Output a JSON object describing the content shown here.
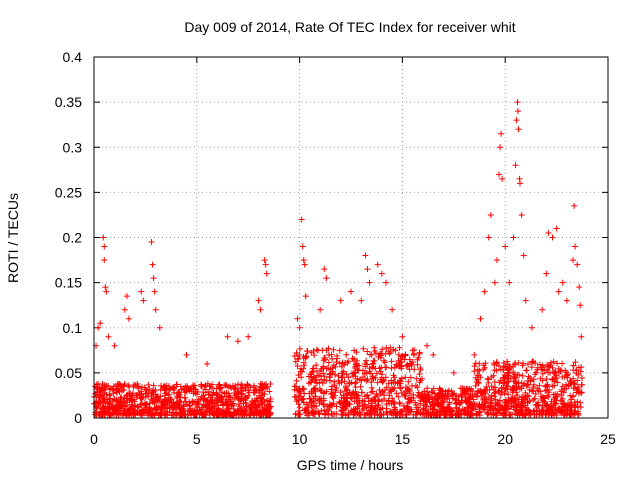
{
  "chart_data": {
    "type": "scatter",
    "title": "Day 009 of 2014, Rate Of TEC Index for receiver whit",
    "xlabel": "GPS time / hours",
    "ylabel": "ROTI / TECUs",
    "xlim": [
      0,
      25
    ],
    "ylim": [
      0,
      0.4
    ],
    "xticks": [
      0,
      5,
      10,
      15,
      20,
      25
    ],
    "yticks": [
      0,
      0.05,
      0.1,
      0.15,
      0.2,
      0.25,
      0.3,
      0.35,
      0.4
    ],
    "xtick_labels": [
      "0",
      "5",
      "10",
      "15",
      "20",
      "25"
    ],
    "ytick_labels": [
      "0",
      "0.05",
      "0.1",
      "0.15",
      "0.2",
      "0.25",
      "0.3",
      "0.35",
      "0.4"
    ],
    "grid": true,
    "marker": "+",
    "color": "#ff0000",
    "series": [
      {
        "name": "ROTI",
        "points": [
          [
            0.1,
            0.08
          ],
          [
            0.2,
            0.1
          ],
          [
            0.3,
            0.105
          ],
          [
            0.45,
            0.2
          ],
          [
            0.5,
            0.19
          ],
          [
            0.5,
            0.175
          ],
          [
            0.55,
            0.145
          ],
          [
            0.6,
            0.14
          ],
          [
            0.7,
            0.09
          ],
          [
            1.0,
            0.08
          ],
          [
            1.5,
            0.12
          ],
          [
            1.6,
            0.135
          ],
          [
            1.7,
            0.11
          ],
          [
            2.3,
            0.14
          ],
          [
            2.4,
            0.13
          ],
          [
            2.8,
            0.195
          ],
          [
            2.85,
            0.17
          ],
          [
            2.9,
            0.155
          ],
          [
            2.95,
            0.14
          ],
          [
            3.0,
            0.12
          ],
          [
            3.2,
            0.1
          ],
          [
            4.5,
            0.07
          ],
          [
            5.5,
            0.06
          ],
          [
            6.5,
            0.09
          ],
          [
            7.0,
            0.085
          ],
          [
            7.5,
            0.09
          ],
          [
            8.0,
            0.13
          ],
          [
            8.1,
            0.12
          ],
          [
            8.3,
            0.175
          ],
          [
            8.35,
            0.17
          ],
          [
            8.4,
            0.16
          ],
          [
            9.9,
            0.11
          ],
          [
            10.0,
            0.1
          ],
          [
            10.1,
            0.22
          ],
          [
            10.15,
            0.19
          ],
          [
            10.2,
            0.175
          ],
          [
            10.25,
            0.17
          ],
          [
            10.3,
            0.135
          ],
          [
            11.0,
            0.12
          ],
          [
            11.2,
            0.165
          ],
          [
            11.3,
            0.155
          ],
          [
            12.0,
            0.13
          ],
          [
            12.5,
            0.14
          ],
          [
            13.0,
            0.13
          ],
          [
            13.2,
            0.18
          ],
          [
            13.3,
            0.165
          ],
          [
            13.4,
            0.15
          ],
          [
            13.8,
            0.17
          ],
          [
            14.0,
            0.16
          ],
          [
            14.2,
            0.15
          ],
          [
            14.5,
            0.12
          ],
          [
            15.0,
            0.09
          ],
          [
            15.5,
            0.075
          ],
          [
            16.2,
            0.08
          ],
          [
            16.5,
            0.07
          ],
          [
            17.5,
            0.05
          ],
          [
            18.5,
            0.07
          ],
          [
            18.8,
            0.11
          ],
          [
            19.0,
            0.14
          ],
          [
            19.2,
            0.2
          ],
          [
            19.3,
            0.225
          ],
          [
            19.5,
            0.15
          ],
          [
            19.6,
            0.175
          ],
          [
            19.7,
            0.27
          ],
          [
            19.75,
            0.3
          ],
          [
            19.8,
            0.315
          ],
          [
            19.85,
            0.265
          ],
          [
            20.0,
            0.19
          ],
          [
            20.2,
            0.15
          ],
          [
            20.4,
            0.2
          ],
          [
            20.5,
            0.28
          ],
          [
            20.55,
            0.33
          ],
          [
            20.6,
            0.35
          ],
          [
            20.62,
            0.34
          ],
          [
            20.65,
            0.32
          ],
          [
            20.7,
            0.265
          ],
          [
            20.72,
            0.26
          ],
          [
            20.8,
            0.225
          ],
          [
            20.9,
            0.18
          ],
          [
            21.0,
            0.13
          ],
          [
            21.3,
            0.1
          ],
          [
            21.8,
            0.12
          ],
          [
            22.0,
            0.16
          ],
          [
            22.1,
            0.205
          ],
          [
            22.3,
            0.2
          ],
          [
            22.5,
            0.21
          ],
          [
            22.6,
            0.14
          ],
          [
            22.8,
            0.15
          ],
          [
            23.0,
            0.13
          ],
          [
            23.3,
            0.175
          ],
          [
            23.35,
            0.235
          ],
          [
            23.4,
            0.19
          ],
          [
            23.5,
            0.17
          ],
          [
            23.6,
            0.145
          ],
          [
            23.65,
            0.125
          ],
          [
            23.7,
            0.09
          ]
        ]
      }
    ]
  }
}
